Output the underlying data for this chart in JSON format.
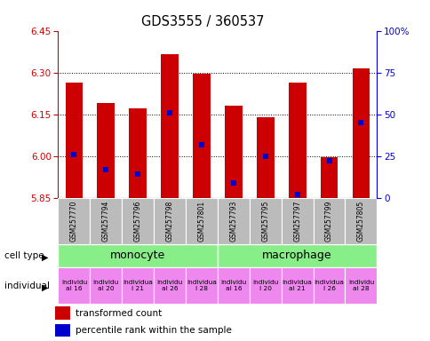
{
  "title": "GDS3555 / 360537",
  "samples": [
    "GSM257770",
    "GSM257794",
    "GSM257796",
    "GSM257798",
    "GSM257801",
    "GSM257793",
    "GSM257795",
    "GSM257797",
    "GSM257799",
    "GSM257805"
  ],
  "bar_values": [
    6.265,
    6.19,
    6.17,
    6.365,
    6.295,
    6.18,
    6.14,
    6.265,
    5.995,
    6.315
  ],
  "percentile_values": [
    26,
    17,
    14,
    51,
    32,
    9,
    25,
    2,
    22,
    45
  ],
  "ymin": 5.85,
  "ymax": 6.45,
  "yticks": [
    5.85,
    6.0,
    6.15,
    6.3,
    6.45
  ],
  "right_yticks": [
    0,
    25,
    50,
    75,
    100
  ],
  "right_yticklabels": [
    "0",
    "25",
    "50",
    "75",
    "100%"
  ],
  "dotted_lines": [
    6.0,
    6.15,
    6.3
  ],
  "bar_color": "#cc0000",
  "marker_color": "#0000cc",
  "cell_type_groups": [
    {
      "label": "monocyte",
      "start": 0,
      "end": 5,
      "color": "#88ee88"
    },
    {
      "label": "macrophage",
      "start": 5,
      "end": 10,
      "color": "#88ee88"
    }
  ],
  "individual_labels": [
    "individu\nal 16",
    "individu\nal 20",
    "individua\nl 21",
    "individu\nal 26",
    "individua\nl 28",
    "individu\nal 16",
    "individu\nl 20",
    "individua\nal 21",
    "individua\nl 26",
    "individu\nal 28"
  ],
  "individual_color": "#ee88ee",
  "sample_bg_color": "#bbbbbb",
  "left_axis_color": "#cc0000",
  "right_axis_color": "#0000cc",
  "legend_red_label": "transformed count",
  "legend_blue_label": "percentile rank within the sample"
}
